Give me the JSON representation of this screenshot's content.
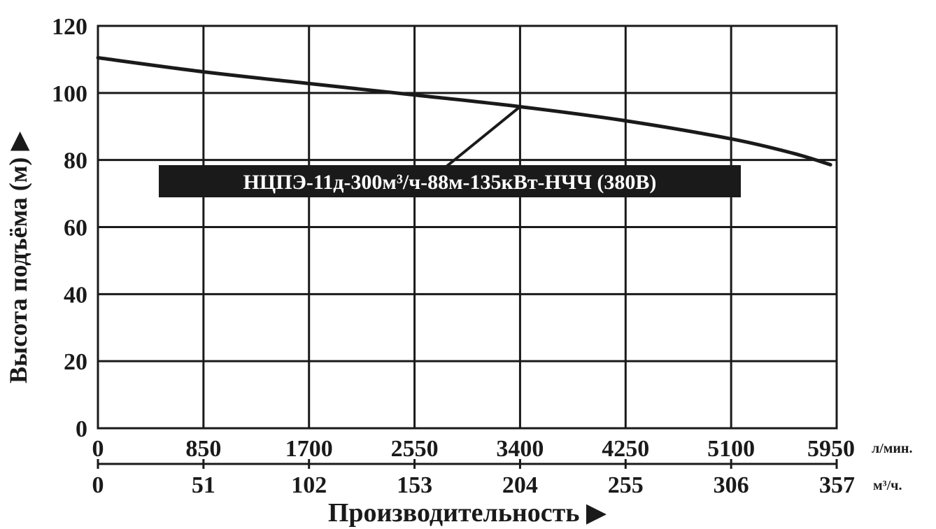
{
  "chart_data": {
    "type": "line",
    "ylabel": "Высота подъёма (м) ▶",
    "xlabel": "Производительность ▶",
    "ylim": [
      0,
      120
    ],
    "y_ticks": [
      "0",
      "20",
      "40",
      "60",
      "80",
      "100",
      "120"
    ],
    "x_axis_primary": {
      "unit": "л/мин.",
      "ticks": [
        "0",
        "850",
        "1700",
        "2550",
        "3400",
        "4250",
        "5100",
        "5950"
      ],
      "range": [
        0,
        5950
      ]
    },
    "x_axis_secondary": {
      "unit": "м³/ч.",
      "ticks": [
        "0",
        "51",
        "102",
        "153",
        "204",
        "255",
        "306",
        "357"
      ],
      "range": [
        0,
        357
      ]
    },
    "grid": true,
    "series": [
      {
        "name": "НЦПЭ-11д-300м³/ч-88м-135кВт-НЧЧ (380В)",
        "x": [
          0,
          850,
          1700,
          2550,
          3400,
          4250,
          5100,
          5600,
          5900
        ],
        "y": [
          110.5,
          106.3,
          102.8,
          99.4,
          95.9,
          91.7,
          86.3,
          82.0,
          78.6
        ]
      }
    ],
    "annotation": {
      "label": "НЦПЭ-11д-300м³/ч-88м-135кВт-НЧЧ (380В)",
      "points_to": [
        3400,
        95.9
      ]
    }
  },
  "colors": {
    "line": "#1a1a1a",
    "grid": "#1a1a1a",
    "callout_bg": "#1a1a1a",
    "callout_text": "#ffffff"
  }
}
